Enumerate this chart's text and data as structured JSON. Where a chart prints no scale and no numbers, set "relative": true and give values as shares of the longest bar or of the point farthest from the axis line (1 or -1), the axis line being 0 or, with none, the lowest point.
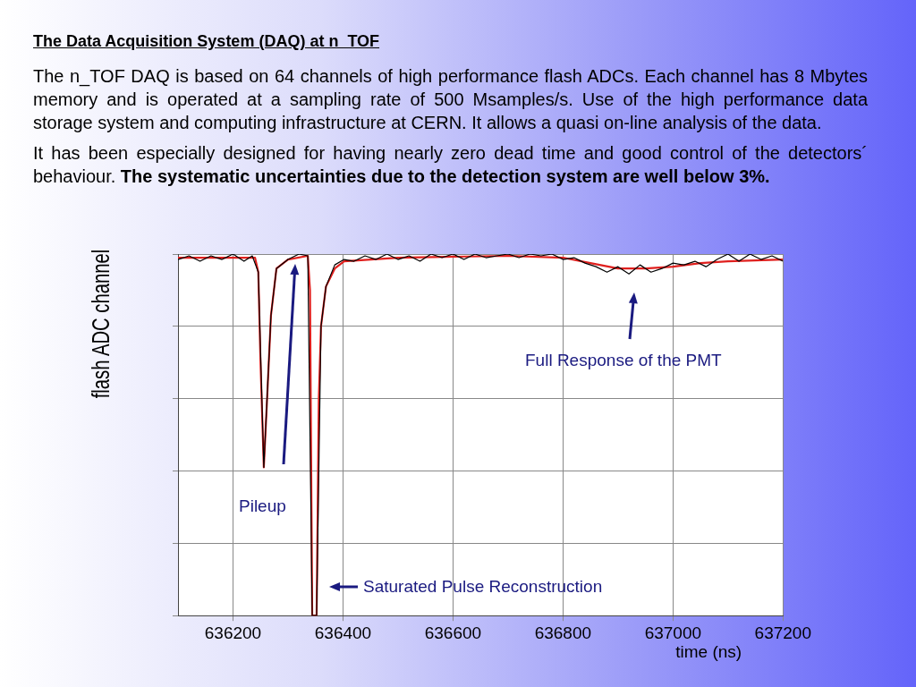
{
  "chart_data": {
    "type": "line",
    "title": "The Data Acquisition System (DAQ) at n_TOF",
    "xlabel": "time (ns)",
    "ylabel": "flash ADC channel",
    "relative": true,
    "grid": true,
    "xlim": [
      636100,
      637200
    ],
    "xticks": [
      636200,
      636400,
      636600,
      636800,
      637000,
      637200
    ],
    "series": [
      {
        "color": "#000000",
        "x": [
          636100,
          636120,
          636140,
          636160,
          636180,
          636200,
          636220,
          636235,
          636246,
          636256,
          636269,
          636279,
          636300,
          636320,
          636336,
          636344,
          636352,
          636360,
          636369,
          636385,
          636402,
          636420,
          636440,
          636460,
          636480,
          636500,
          636520,
          636540,
          636560,
          636580,
          636600,
          636620,
          636640,
          636660,
          636680,
          636700,
          636720,
          636740,
          636760,
          636780,
          636800,
          636820,
          636840,
          636860,
          636880,
          636900,
          636920,
          636940,
          636960,
          636980,
          637000,
          637020,
          637040,
          637060,
          637080,
          637100,
          637120,
          637140,
          637160,
          637180,
          637200
        ],
        "values": [
          0.985,
          0.995,
          0.98,
          0.995,
          0.985,
          1.0,
          0.98,
          0.995,
          0.95,
          0.41,
          0.83,
          0.96,
          0.985,
          1.0,
          0.995,
          0,
          0,
          0.8,
          0.91,
          0.97,
          0.985,
          0.98,
          0.995,
          0.985,
          1.0,
          0.985,
          0.995,
          0.98,
          1.0,
          0.99,
          1.0,
          0.985,
          1.0,
          0.99,
          0.995,
          1.0,
          0.99,
          1.0,
          0.995,
          1.0,
          0.985,
          0.99,
          0.975,
          0.965,
          0.95,
          0.965,
          0.945,
          0.97,
          0.95,
          0.96,
          0.975,
          0.97,
          0.98,
          0.965,
          0.985,
          1.0,
          0.98,
          1.0,
          0.985,
          0.995,
          0.98
        ]
      },
      {
        "color": "#e0201e",
        "x": [
          636100,
          636200,
          636240,
          636246,
          636250,
          636256,
          636262,
          636269,
          636279,
          636300,
          636336,
          636340,
          636344,
          636352,
          636356,
          636360,
          636369,
          636385,
          636402,
          636500,
          636700,
          636800,
          636850,
          636900,
          636950,
          637000,
          637050,
          637100,
          637200
        ],
        "values": [
          0.99,
          0.99,
          0.99,
          0.95,
          0.7,
          0.41,
          0.6,
          0.83,
          0.96,
          0.985,
          0.995,
          0.9,
          0,
          0,
          0.6,
          0.8,
          0.91,
          0.96,
          0.98,
          0.99,
          0.995,
          0.99,
          0.975,
          0.96,
          0.96,
          0.965,
          0.975,
          0.98,
          0.985
        ]
      }
    ],
    "annotations": [
      "The n_TOF DAQ is based on 64 channels of high performance flash ADCs. Each channel has 8 Mbytes memory and is operated at a sampling rate of 500 Msamples/s. Use of the high performance data storage system and computing infrastructure at CERN. It allows a quasi on-line analysis of the data.",
      "It has been especially designed for having nearly zero dead time and  good control of the detectors´ behaviour.",
      "The systematic uncertainties due to the detection system are well below 3%.",
      "Pileup",
      "Full Response of the PMT",
      "Saturated Pulse Reconstruction"
    ]
  }
}
